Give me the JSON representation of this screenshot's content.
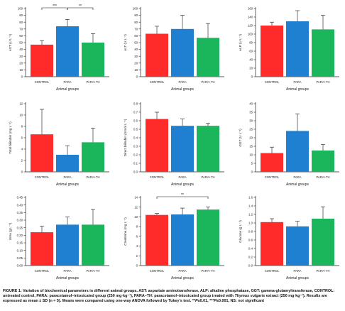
{
  "colors": {
    "control": "#ff2a2a",
    "para": "#1f7fd0",
    "parath": "#1bb55c",
    "axis": "#222222",
    "grid": "#cccccc"
  },
  "chart_data": [
    {
      "type": "bar",
      "name": "ast",
      "ylabel": "AST (U L⁻¹)",
      "xlabel": "Animal groups",
      "categories": [
        "CONTROL",
        "PARA",
        "PARA+TH"
      ],
      "values": [
        47,
        74,
        50
      ],
      "errors": [
        6,
        10,
        13
      ],
      "ylim": [
        0,
        100
      ],
      "yticks": [
        0,
        10,
        20,
        30,
        40,
        50,
        60,
        70,
        80,
        90,
        100
      ],
      "annotations": [
        {
          "from": 0,
          "to": 1,
          "label": "***"
        },
        {
          "from": 1,
          "to": 2,
          "label": "**"
        }
      ]
    },
    {
      "type": "bar",
      "name": "alt",
      "ylabel": "ALT (U L⁻¹)",
      "xlabel": "Animal groups",
      "categories": [
        "CONTROL",
        "PARA",
        "PARA+TH"
      ],
      "values": [
        63,
        70,
        57
      ],
      "errors": [
        11,
        20,
        21
      ],
      "ylim": [
        0,
        100
      ],
      "yticks": [
        0,
        10,
        20,
        30,
        40,
        50,
        60,
        70,
        80,
        90,
        100
      ],
      "annotations": []
    },
    {
      "type": "bar",
      "name": "alp",
      "ylabel": "ALP (U L⁻¹)",
      "xlabel": "Animal groups",
      "categories": [
        "CONTROL",
        "PARA",
        "PARA+TH"
      ],
      "values": [
        120,
        130,
        111
      ],
      "errors": [
        8,
        25,
        33
      ],
      "ylim": [
        0,
        160
      ],
      "yticks": [
        0,
        20,
        40,
        60,
        80,
        100,
        120,
        140,
        160
      ],
      "annotations": []
    },
    {
      "type": "bar",
      "name": "total-bilirubin",
      "ylabel": "Total bilirubin (mg L⁻¹)",
      "xlabel": "Animal groups",
      "categories": [
        "CONTROL",
        "PARA",
        "PARA+TH"
      ],
      "values": [
        6.6,
        3.0,
        5.2
      ],
      "errors": [
        4.4,
        1.6,
        2.5
      ],
      "ylim": [
        0,
        12
      ],
      "yticks": [
        0,
        2,
        4,
        6,
        8,
        10,
        12
      ],
      "annotations": []
    },
    {
      "type": "bar",
      "name": "direct-bilirubin",
      "ylabel": "Direct bilirubin (mmol L⁻¹)",
      "xlabel": "Animal groups",
      "categories": [
        "CONTROL",
        "PARA",
        "PARA+TH"
      ],
      "values": [
        0.62,
        0.54,
        0.54
      ],
      "errors": [
        0.08,
        0.08,
        0.03
      ],
      "ylim": [
        0,
        0.8
      ],
      "yticks": [
        0,
        0.1,
        0.2,
        0.3,
        0.4,
        0.5,
        0.6,
        0.7,
        0.8
      ],
      "annotations": []
    },
    {
      "type": "bar",
      "name": "ggt",
      "ylabel": "GGT (U L⁻¹)",
      "xlabel": "Animal groups",
      "categories": [
        "CONTROL",
        "PARA",
        "PARA+TH"
      ],
      "values": [
        11,
        24,
        12.5
      ],
      "errors": [
        3.5,
        10,
        3.5
      ],
      "ylim": [
        0,
        40
      ],
      "yticks": [
        0,
        5,
        10,
        15,
        20,
        25,
        30,
        35,
        40
      ],
      "annotations": []
    },
    {
      "type": "bar",
      "name": "urea",
      "ylabel": "Urea (g L⁻¹)",
      "xlabel": "Animal groups",
      "categories": [
        "CONTROL",
        "PARA",
        "PARA+TH"
      ],
      "values": [
        0.22,
        0.27,
        0.27
      ],
      "errors": [
        0.04,
        0.05,
        0.1
      ],
      "ylim": [
        0,
        0.45
      ],
      "yticks": [
        0,
        0.05,
        0.1,
        0.15,
        0.2,
        0.25,
        0.3,
        0.35,
        0.4,
        0.45
      ],
      "annotations": []
    },
    {
      "type": "bar",
      "name": "creatinine",
      "ylabel": "Creatinine (mg L⁻¹)",
      "xlabel": "Animal groups",
      "categories": [
        "CONTROL",
        "PARA",
        "PARA+TH"
      ],
      "values": [
        10.4,
        10.5,
        11.5
      ],
      "errors": [
        0.3,
        1.3,
        0.5
      ],
      "ylim": [
        0,
        14
      ],
      "yticks": [
        0,
        2,
        4,
        6,
        8,
        10,
        12,
        14
      ],
      "annotations": [
        {
          "from": 0,
          "to": 2,
          "label": "**"
        }
      ]
    },
    {
      "type": "bar",
      "name": "glucose",
      "ylabel": "Glucose (g L⁻¹)",
      "xlabel": "Animal groups",
      "categories": [
        "CONTROL",
        "PARA",
        "PARA+TH"
      ],
      "values": [
        1.02,
        0.92,
        1.1
      ],
      "errors": [
        0.08,
        0.12,
        0.28
      ],
      "ylim": [
        0,
        1.6
      ],
      "yticks": [
        0,
        0.2,
        0.4,
        0.6,
        0.8,
        1.0,
        1.2,
        1.4,
        1.6
      ],
      "annotations": []
    }
  ],
  "caption": {
    "label": "FIGURE 1:",
    "text_before_species": " Variation of biochemical parameters in different animal groups. AST: aspartate aminotransferase, ALP: alkaline phosphatase, GGT: gamma-glutamyltransferase, CONTROL: untreated control, PARA: paracetamol–intoxicated group (250 mg·kg⁻¹), PARA–TH: paracetamol–intoxicated group treated with ",
    "species": "Thymus vulgaris",
    "text_after_species": " extract (250 mg·kg⁻¹). Results are expressed as mean ± SD (n = 5). Means were compared using one-way ANOVA followed by Tukey’s test. **",
    "p1": "P",
    "t1": "≤0.01, ***",
    "p2": "P",
    "t2": "≤0.001, NS: not significant"
  }
}
